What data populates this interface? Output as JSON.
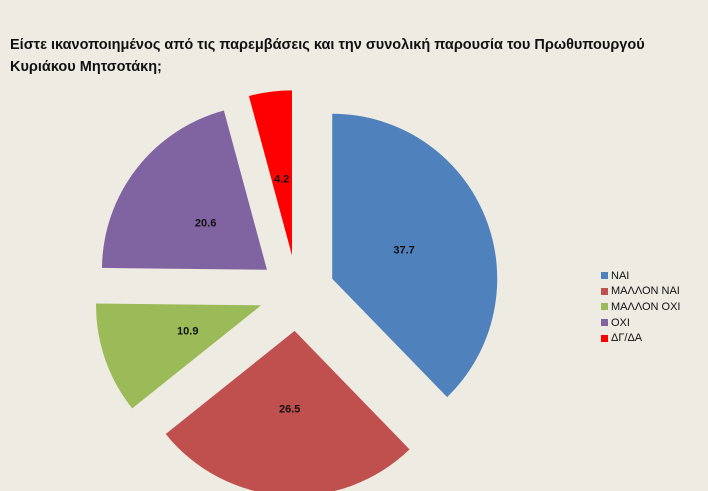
{
  "chart_data": {
    "type": "pie",
    "title": "Είστε ικανοποιημένος από τις παρεμβάσεις και την συνολική παρουσία του Πρωθυπουργού Κυριάκου Μητσοτάκη;",
    "categories": [
      "ΝΑΙ",
      "ΜΑΛΛΟΝ ΝΑΙ",
      "ΜΑΛΛΟΝ ΟΧΙ",
      "ΟΧΙ",
      "ΔΓ/ΔΑ"
    ],
    "values": [
      37.7,
      26.5,
      10.9,
      20.6,
      4.2
    ],
    "colors": [
      "#4f81bd",
      "#c0504d",
      "#9bbb59",
      "#8064a2",
      "#ff0000"
    ],
    "data_labels": [
      "37.7",
      "26.5",
      "10.9",
      "20.6",
      "4.2"
    ],
    "legend_position": "right",
    "exploded": true
  }
}
